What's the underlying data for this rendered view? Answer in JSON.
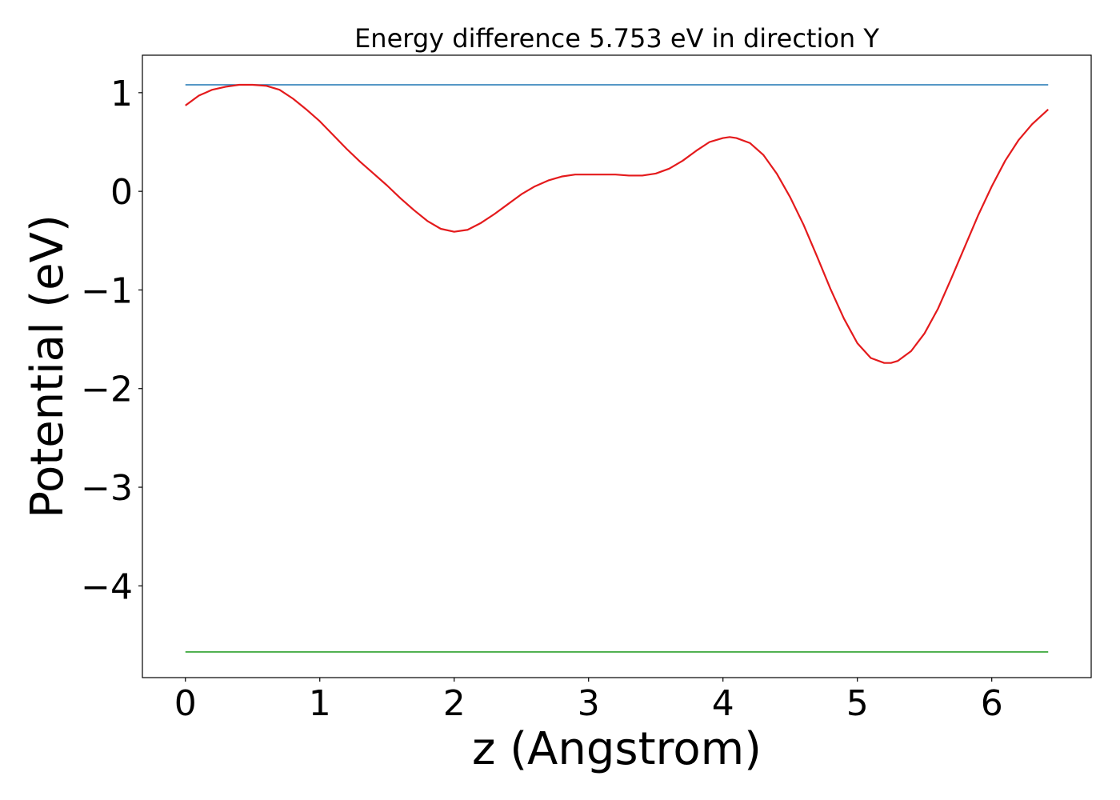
{
  "chart_data": {
    "type": "line",
    "title": "Energy difference 5.753 eV in direction Y",
    "xlabel": "z (Angstrom)",
    "ylabel": "Potential (eV)",
    "xlim": [
      -0.32,
      6.74
    ],
    "ylim": [
      -4.93,
      1.38
    ],
    "xticks": [
      0,
      1,
      2,
      3,
      4,
      5,
      6
    ],
    "yticks": [
      -4,
      -3,
      -2,
      -1,
      0,
      1
    ],
    "xtick_labels": [
      "0",
      "1",
      "2",
      "3",
      "4",
      "5",
      "6"
    ],
    "ytick_labels": [
      "−4",
      "−3",
      "−2",
      "−1",
      "0",
      "1"
    ],
    "grid": false,
    "series": [
      {
        "color": "#1f77b4",
        "x": [
          0,
          6.42
        ],
        "y": [
          1.08,
          1.08
        ]
      },
      {
        "color": "#2ca02c",
        "x": [
          0,
          6.42
        ],
        "y": [
          -4.67,
          -4.67
        ]
      },
      {
        "color": "#e41a1c",
        "x": [
          0.0,
          0.1,
          0.2,
          0.3,
          0.4,
          0.5,
          0.6,
          0.7,
          0.8,
          0.9,
          1.0,
          1.1,
          1.2,
          1.3,
          1.4,
          1.5,
          1.6,
          1.7,
          1.8,
          1.9,
          2.0,
          2.1,
          2.2,
          2.3,
          2.4,
          2.5,
          2.6,
          2.7,
          2.8,
          2.9,
          3.0,
          3.1,
          3.2,
          3.3,
          3.4,
          3.5,
          3.6,
          3.7,
          3.8,
          3.9,
          4.0,
          4.05,
          4.1,
          4.2,
          4.3,
          4.4,
          4.5,
          4.6,
          4.7,
          4.8,
          4.9,
          5.0,
          5.1,
          5.2,
          5.25,
          5.3,
          5.4,
          5.5,
          5.6,
          5.7,
          5.8,
          5.9,
          6.0,
          6.1,
          6.2,
          6.3,
          6.42
        ],
        "y": [
          0.87,
          0.97,
          1.03,
          1.06,
          1.08,
          1.08,
          1.07,
          1.03,
          0.94,
          0.83,
          0.71,
          0.57,
          0.43,
          0.3,
          0.18,
          0.06,
          -0.07,
          -0.19,
          -0.3,
          -0.38,
          -0.41,
          -0.39,
          -0.32,
          -0.23,
          -0.13,
          -0.03,
          0.05,
          0.11,
          0.15,
          0.17,
          0.17,
          0.17,
          0.17,
          0.16,
          0.16,
          0.18,
          0.23,
          0.31,
          0.41,
          0.5,
          0.54,
          0.55,
          0.54,
          0.49,
          0.37,
          0.18,
          -0.06,
          -0.34,
          -0.66,
          -0.99,
          -1.29,
          -1.54,
          -1.69,
          -1.74,
          -1.74,
          -1.72,
          -1.62,
          -1.44,
          -1.19,
          -0.88,
          -0.56,
          -0.24,
          0.05,
          0.31,
          0.52,
          0.68,
          0.83
        ]
      }
    ]
  }
}
